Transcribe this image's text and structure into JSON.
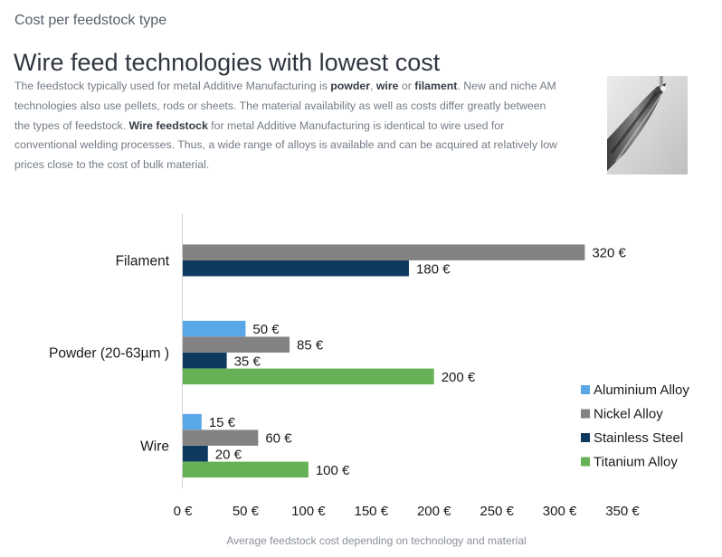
{
  "header": {
    "subtitle": "Cost per feedstock type",
    "title": "Wire feed technologies with lowest cost"
  },
  "description": {
    "p1": "The feedstock typically used for metal Additive Manufacturing is ",
    "b1": "powder",
    "p2": ", ",
    "b2": "wire",
    "p3": " or ",
    "b3": "filament",
    "p4": ". New and niche AM technologies also use pellets, rods or sheets. The material availability as well as costs differ greatly between the types of feedstock. ",
    "b4": "Wire feedstock",
    "p5": " for metal Additive Manufacturing is identical to wire used for conventional welding processes. Thus, a wide range of alloys is available and can be acquired at relatively low prices close to the cost of bulk material."
  },
  "chart_data": {
    "type": "bar",
    "orientation": "horizontal",
    "categories": [
      "Filament",
      "Powder (20-63µm )",
      "Wire"
    ],
    "series": [
      {
        "name": "Aluminium Alloy",
        "color": "#5aa7e8",
        "values": [
          null,
          50,
          15
        ]
      },
      {
        "name": "Nickel Alloy",
        "color": "#828282",
        "values": [
          320,
          85,
          60
        ]
      },
      {
        "name": "Stainless Steel",
        "color": "#0f3a5f",
        "values": [
          180,
          35,
          20
        ]
      },
      {
        "name": "Titanium Alloy",
        "color": "#66b155",
        "values": [
          null,
          200,
          100
        ]
      }
    ],
    "xlim": [
      0,
      350
    ],
    "xticks": [
      0,
      50,
      100,
      150,
      200,
      250,
      300,
      350
    ],
    "tick_labels": [
      "0 €",
      "50 €",
      "100 €",
      "150 €",
      "200 €",
      "250 €",
      "300 €",
      "350 €"
    ],
    "value_suffix": " €",
    "legend_position": "bottom-right",
    "grid": false,
    "caption": "Average feedstock cost depending on technology and material"
  }
}
